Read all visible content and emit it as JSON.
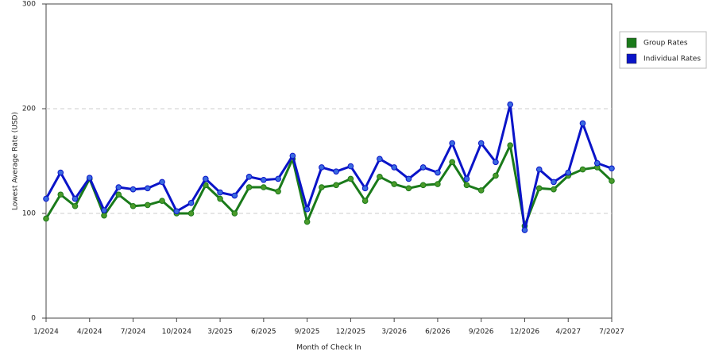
{
  "chart_data": {
    "type": "line",
    "x_label": "Month of Check In",
    "y_label": "Lowest Average Rate (USD)",
    "categories": [
      "1/2024",
      null,
      null,
      "4/2024",
      null,
      null,
      "7/2024",
      null,
      null,
      "10/2024",
      null,
      null,
      "3/2025",
      null,
      null,
      "6/2025",
      null,
      null,
      "9/2025",
      null,
      null,
      "12/2025",
      null,
      null,
      "3/2026",
      null,
      null,
      "6/2026",
      null,
      null,
      "9/2026",
      null,
      null,
      "12/2026",
      null,
      null,
      "4/2027",
      null,
      null,
      "7/2027"
    ],
    "series": [
      {
        "name": "Group Rates",
        "color": "#1a7a1a",
        "marker_color": "#4a9a2a",
        "values": [
          95,
          118,
          107,
          133,
          98,
          118,
          107,
          108,
          112,
          100,
          100,
          127,
          114,
          100,
          125,
          125,
          121,
          152,
          92,
          125,
          127,
          133,
          112,
          135,
          128,
          124,
          127,
          128,
          149,
          127,
          122,
          136,
          165,
          88,
          124,
          123,
          136,
          142,
          144,
          131
        ]
      },
      {
        "name": "Individual Rates",
        "color": "#0a14c8",
        "marker_color": "#3a6ae0",
        "values": [
          114,
          139,
          114,
          134,
          103,
          125,
          123,
          124,
          130,
          102,
          110,
          133,
          120,
          117,
          135,
          132,
          133,
          155,
          104,
          144,
          140,
          145,
          124,
          152,
          144,
          133,
          144,
          139,
          167,
          133,
          167,
          149,
          204,
          84,
          142,
          130,
          139,
          186,
          148,
          143
        ]
      }
    ],
    "ylim": [
      0,
      300
    ],
    "yticks": [
      0,
      100,
      200,
      300
    ],
    "grid": true,
    "legend": "right"
  }
}
